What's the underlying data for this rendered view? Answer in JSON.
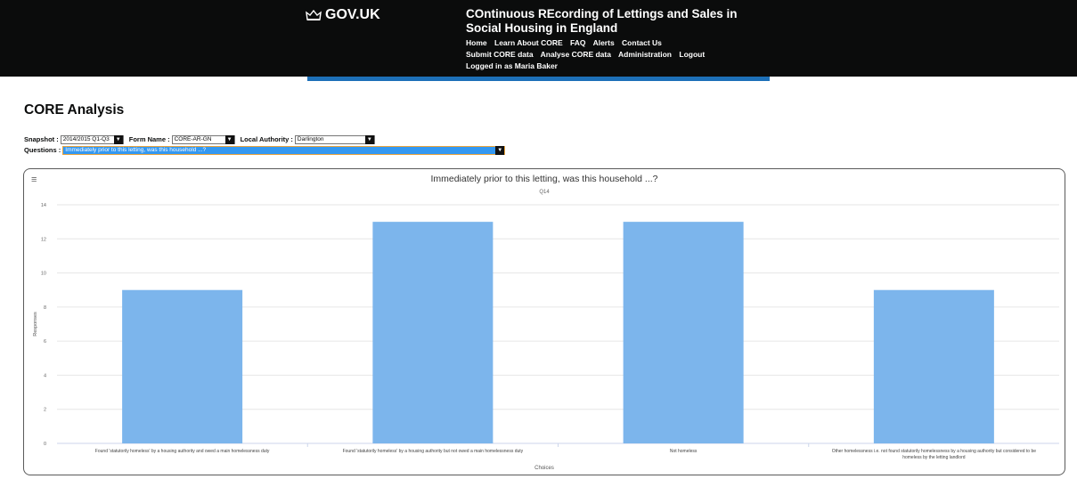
{
  "header": {
    "logo_text": "GOV.UK",
    "service_title": "COntinuous REcording of Lettings and Sales in Social Housing in England",
    "nav_row1": [
      "Home",
      "Learn About CORE",
      "FAQ",
      "Alerts",
      "Contact Us"
    ],
    "nav_row2": [
      "Submit CORE data",
      "Analyse CORE data",
      "Administration",
      "Logout"
    ],
    "user_status": "Logged in as Maria Baker",
    "colors": {
      "header_bg": "#0b0c0c",
      "accent_bar": "#1d70b8"
    }
  },
  "page": {
    "title": "CORE Analysis"
  },
  "filters": {
    "snapshot_label": "Snapshot :",
    "snapshot_value": "2014/2015 Q1-Q3",
    "form_label": "Form Name :",
    "form_value": "CORE-AR-GN",
    "la_label": "Local Authority :",
    "la_value": "Darlington",
    "questions_label": "Questions :",
    "questions_value": "Immediately prior to this letting, was this household ...?"
  },
  "chart_menu_icon": "hamburger-menu-icon",
  "chart_data": {
    "type": "bar",
    "title": "Immediately prior to this letting, was this household ...?",
    "subtitle": "Q14",
    "xlabel": "Choices",
    "ylabel": "Responses",
    "ylim": [
      0,
      14
    ],
    "yticks": [
      0,
      2,
      4,
      6,
      8,
      10,
      12,
      14
    ],
    "categories": [
      "Found 'statutorily homeless' by a housing authority and owed a main homelessness duty",
      "Found 'statutorily homeless' by a housing authority but not owed a main homelessness duty",
      "Not homeless",
      "Other homelessness i.e. not found statutorily homelessness by a housing authority but considered to be homeless by the letting landlord"
    ],
    "values": [
      9,
      13,
      13,
      9
    ],
    "bar_color": "#7cb5ec",
    "grid": true
  }
}
